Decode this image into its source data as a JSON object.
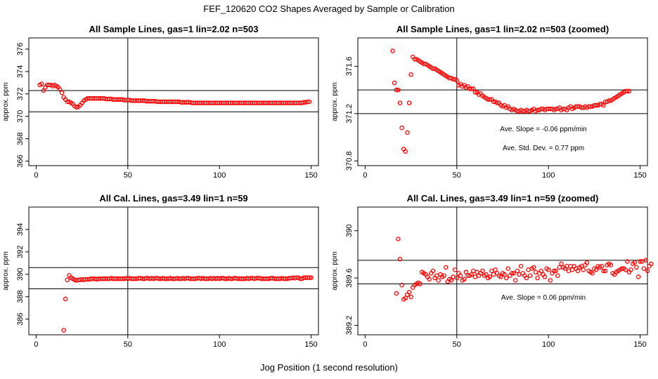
{
  "page": {
    "title": "FEF_120620  CO2 Shapes Averaged by Sample or Calibration",
    "x_caption": "Jog Position (1 second resolution)"
  },
  "colors": {
    "points": "#ff0000",
    "axes": "#000000",
    "background": "#ffffff"
  },
  "chart_data": [
    {
      "type": "scatter",
      "title": "All Sample Lines, gas=1 lin=2.02 n=503",
      "ylabel": "approx. ppm",
      "xlim": [
        -4,
        154
      ],
      "ylim": [
        365.6,
        377.0
      ],
      "xticks": [
        0,
        50,
        100,
        150
      ],
      "yticks": [
        366,
        368,
        370,
        372,
        374,
        376
      ],
      "vline": 50,
      "hlines": [
        372.3,
        370.4
      ],
      "annotations": [],
      "series": [
        {
          "x_start": 2,
          "x_step": 1,
          "values": [
            372.8,
            372.9,
            372.3,
            372.6,
            372.8,
            372.8,
            372.8,
            372.7,
            372.8,
            372.7,
            372.6,
            372.4,
            372.1,
            371.7,
            371.5,
            371.3,
            371.3,
            371.2,
            371.1,
            370.9,
            370.8,
            370.85,
            371.0,
            371.2,
            371.4,
            371.5,
            371.6,
            371.6,
            371.6,
            371.6,
            371.6,
            371.6,
            371.6,
            371.6,
            371.6,
            371.6,
            371.55,
            371.55,
            371.55,
            371.55,
            371.5,
            371.5,
            371.5,
            371.5,
            371.5,
            371.5,
            371.45,
            371.45,
            371.45,
            371.45,
            371.4,
            371.4,
            371.4,
            371.4,
            371.4,
            371.4,
            371.4,
            371.4,
            371.35,
            371.35,
            371.35,
            371.35,
            371.35,
            371.35,
            371.3,
            371.3,
            371.3,
            371.3,
            371.3,
            371.3,
            371.3,
            371.3,
            371.3,
            371.3,
            371.3,
            371.3,
            371.3,
            371.25,
            371.25,
            371.25,
            371.25,
            371.25,
            371.25,
            371.2,
            371.2,
            371.2,
            371.2,
            371.2,
            371.2,
            371.2,
            371.2,
            371.2,
            371.2,
            371.2,
            371.2,
            371.2,
            371.2,
            371.2,
            371.2,
            371.2,
            371.2,
            371.2,
            371.2,
            371.2,
            371.2,
            371.2,
            371.2,
            371.2,
            371.2,
            371.2,
            371.2,
            371.2,
            371.2,
            371.2,
            371.2,
            371.2,
            371.2,
            371.2,
            371.2,
            371.2,
            371.2,
            371.2,
            371.2,
            371.2,
            371.2,
            371.2,
            371.2,
            371.2,
            371.2,
            371.2,
            371.2,
            371.2,
            371.2,
            371.2,
            371.2,
            371.2,
            371.2,
            371.2,
            371.2,
            371.2,
            371.2,
            371.2,
            371.2,
            371.2,
            371.25,
            371.25,
            371.3,
            371.3
          ]
        }
      ]
    },
    {
      "type": "scatter",
      "title": "All Sample Lines, gas=1 lin=2.02 n=503 (zoomed)",
      "ylabel": "approx. ppm",
      "xlim": [
        -4,
        154
      ],
      "ylim": [
        370.76,
        371.84
      ],
      "xticks": [
        0,
        50,
        100,
        150
      ],
      "yticks": [
        370.8,
        371.2,
        371.6
      ],
      "vline": 50,
      "hlines": [
        371.4,
        371.2
      ],
      "annotations": [
        "Ave. Slope =  -0.06  ppm/min",
        "Ave. Std. Dev. =  0.77  ppm"
      ],
      "series": [
        {
          "x_start": 15,
          "x_step": 1,
          "values": [
            371.73,
            371.46,
            371.4,
            371.4,
            371.29,
            371.08,
            370.9,
            370.88,
            371.04,
            371.29,
            371.53,
            371.68,
            371.66,
            371.66,
            371.65,
            371.64,
            371.63,
            371.62,
            371.62,
            371.61,
            371.6,
            371.59,
            371.58,
            371.58,
            371.57,
            371.56,
            371.55,
            371.54,
            371.53,
            371.52,
            371.51,
            371.5,
            371.5,
            371.49,
            371.49,
            371.48,
            371.44,
            371.45,
            371.43,
            371.44,
            371.42,
            371.43,
            371.41,
            371.41,
            371.41,
            371.38,
            371.38,
            371.36,
            371.37,
            371.35,
            371.34,
            371.33,
            371.32,
            371.32,
            371.32,
            371.3,
            371.3,
            371.29,
            371.29,
            371.27,
            371.26,
            371.27,
            371.25,
            371.26,
            371.24,
            371.23,
            371.24,
            371.23,
            371.22,
            371.22,
            371.23,
            371.22,
            371.22,
            371.23,
            371.22,
            371.22,
            371.23,
            371.24,
            371.22,
            371.23,
            371.23,
            371.24,
            371.24,
            371.23,
            371.24,
            371.24,
            371.24,
            371.24,
            371.23,
            371.24,
            371.24,
            371.25,
            371.23,
            371.24,
            371.24,
            371.23,
            371.25,
            371.26,
            371.24,
            371.25,
            371.26,
            371.26,
            371.26,
            371.25,
            371.25,
            371.26,
            371.25,
            371.26,
            371.26,
            371.26,
            371.27,
            371.27,
            371.27,
            371.28,
            371.28,
            371.27,
            371.3,
            371.3,
            371.31,
            371.31,
            371.32,
            371.33,
            371.34,
            371.35,
            371.36,
            371.37,
            371.38,
            371.39,
            371.39,
            371.39
          ]
        }
      ]
    },
    {
      "type": "scatter",
      "title": "All Cal. Lines, gas=3.49 lin=1 n=59",
      "ylabel": "approx. ppm",
      "xlim": [
        -4,
        154
      ],
      "ylim": [
        384.6,
        396.0
      ],
      "xticks": [
        0,
        50,
        100,
        150
      ],
      "yticks": [
        386,
        388,
        390,
        392,
        394
      ],
      "vline": 50,
      "hlines": [
        390.6,
        388.7
      ],
      "annotations": [],
      "series": [
        {
          "x_start": 15,
          "x_step": 1,
          "values": [
            385.0,
            387.8,
            389.5,
            389.9,
            389.7,
            389.6,
            389.5,
            389.45,
            389.5,
            389.5,
            389.55,
            389.5,
            389.55,
            389.55,
            389.55,
            389.6,
            389.6,
            389.6,
            389.55,
            389.6,
            389.6,
            389.6,
            389.6,
            389.6,
            389.6,
            389.6,
            389.65,
            389.6,
            389.6,
            389.6,
            389.6,
            389.6,
            389.6,
            389.6,
            389.65,
            389.6,
            389.65,
            389.6,
            389.6,
            389.6,
            389.6,
            389.65,
            389.65,
            389.6,
            389.6,
            389.65,
            389.65,
            389.6,
            389.65,
            389.6,
            389.65,
            389.65,
            389.6,
            389.6,
            389.65,
            389.6,
            389.6,
            389.6,
            389.65,
            389.6,
            389.6,
            389.6,
            389.65,
            389.6,
            389.6,
            389.65,
            389.6,
            389.65,
            389.65,
            389.6,
            389.6,
            389.6,
            389.6,
            389.65,
            389.65,
            389.6,
            389.65,
            389.6,
            389.6,
            389.6,
            389.65,
            389.6,
            389.65,
            389.6,
            389.65,
            389.6,
            389.65,
            389.65,
            389.6,
            389.6,
            389.65,
            389.6,
            389.6,
            389.65,
            389.65,
            389.6,
            389.6,
            389.6,
            389.6,
            389.6,
            389.65,
            389.6,
            389.65,
            389.65,
            389.6,
            389.65,
            389.65,
            389.65,
            389.6,
            389.6,
            389.6,
            389.6,
            389.6,
            389.65,
            389.65,
            389.6,
            389.6,
            389.6,
            389.6,
            389.65,
            389.6,
            389.6,
            389.6,
            389.65,
            389.65,
            389.7,
            389.65,
            389.7,
            389.7,
            389.6,
            389.6,
            389.7,
            389.7,
            389.7,
            389.7,
            389.7
          ]
        }
      ]
    },
    {
      "type": "scatter",
      "title": "All Cal. Lines, gas=3.49 lin=1 n=59 (zoomed)",
      "ylabel": "approx. ppm",
      "xlim": [
        -4,
        154
      ],
      "ylim": [
        389.12,
        390.2
      ],
      "xticks": [
        0,
        50,
        100,
        150
      ],
      "yticks": [
        389.2,
        389.6,
        390.0
      ],
      "vline": 50,
      "hlines": [
        389.75,
        389.55
      ],
      "annotations": [
        "Ave. Slope =  0.06  ppm/min"
      ],
      "series": [
        {
          "x_start": 17,
          "x_step": 1,
          "values": [
            389.47,
            389.93,
            389.76,
            389.54,
            389.42,
            389.43,
            389.46,
            389.48,
            389.44,
            389.52,
            389.54,
            389.55,
            389.56,
            389.55,
            389.65,
            389.64,
            389.63,
            389.61,
            389.59,
            389.64,
            389.66,
            389.6,
            389.62,
            389.58,
            389.63,
            389.61,
            389.62,
            389.69,
            389.57,
            389.59,
            389.58,
            389.61,
            389.67,
            389.6,
            389.64,
            389.62,
            389.58,
            389.59,
            389.65,
            389.62,
            389.62,
            389.63,
            389.66,
            389.61,
            389.65,
            389.62,
            389.64,
            389.66,
            389.62,
            389.63,
            389.6,
            389.61,
            389.66,
            389.63,
            389.67,
            389.64,
            389.62,
            389.61,
            389.64,
            389.63,
            389.6,
            389.68,
            389.62,
            389.64,
            389.64,
            389.58,
            389.66,
            389.63,
            389.7,
            389.64,
            389.62,
            389.6,
            389.67,
            389.62,
            389.68,
            389.69,
            389.65,
            389.6,
            389.64,
            389.66,
            389.63,
            389.61,
            389.68,
            389.67,
            389.58,
            389.64,
            389.66,
            389.66,
            389.62,
            389.69,
            389.72,
            389.69,
            389.68,
            389.7,
            389.66,
            389.7,
            389.67,
            389.7,
            389.68,
            389.66,
            389.69,
            389.7,
            389.67,
            389.71,
            389.73,
            389.66,
            389.65,
            389.64,
            389.68,
            389.67,
            389.7,
            389.69,
            389.7,
            389.66,
            389.66,
            389.71,
            389.72,
            389.71,
            389.64,
            389.63,
            389.65,
            389.66,
            389.67,
            389.68,
            389.68,
            389.67,
            389.74,
            389.65,
            389.67,
            389.72,
            389.73,
            389.69,
            389.61,
            389.74,
            389.74,
            389.68,
            389.75,
            389.66,
            389.7,
            389.72
          ]
        }
      ]
    }
  ]
}
